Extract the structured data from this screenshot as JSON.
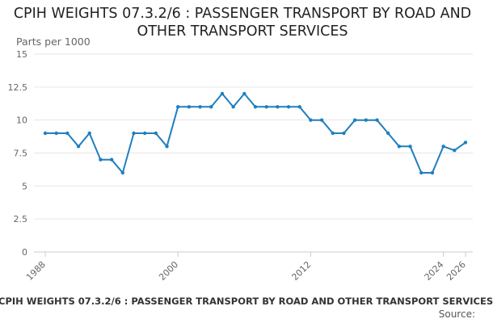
{
  "colors": {
    "line": "#1f7fbf",
    "grid": "#e6e6e6",
    "axis": "#cccccc",
    "tick_text": "#666666"
  },
  "chart_data": {
    "type": "line",
    "title": "CPIH WEIGHTS 07.3.2/6 : PASSENGER TRANSPORT BY ROAD AND OTHER TRANSPORT SERVICES",
    "ylabel": "Parts per 1000",
    "xlabel": "",
    "ylim": [
      0,
      15
    ],
    "yticks": [
      "0",
      "2.5",
      "5",
      "7.5",
      "10",
      "12.5",
      "15"
    ],
    "ytick_values": [
      0,
      2.5,
      5,
      7.5,
      10,
      12.5,
      15
    ],
    "xlim": [
      1988,
      2026
    ],
    "xticks": [
      "1988",
      "2000",
      "2012",
      "2024",
      "2026"
    ],
    "xtick_values": [
      1988,
      2000,
      2012,
      2024,
      2026
    ],
    "grid": true,
    "series": [
      {
        "name": "CPIH weights 07.3.2/6",
        "x": [
          1988,
          1989,
          1990,
          1991,
          1992,
          1993,
          1994,
          1995,
          1996,
          1997,
          1998,
          1999,
          2000,
          2001,
          2002,
          2003,
          2004,
          2005,
          2006,
          2007,
          2008,
          2009,
          2010,
          2011,
          2012,
          2013,
          2014,
          2015,
          2016,
          2017,
          2018,
          2019,
          2020,
          2021,
          2022,
          2023,
          2024,
          2025,
          2026
        ],
        "values": [
          9,
          9,
          9,
          8,
          9,
          7,
          7,
          6,
          9,
          9,
          9,
          8,
          11,
          11,
          11,
          11,
          12,
          11,
          12,
          11,
          11,
          11,
          11,
          11,
          10,
          10,
          9,
          9,
          10,
          10,
          10,
          9,
          8,
          8,
          6,
          6,
          8,
          7.7,
          8.3
        ]
      }
    ]
  },
  "footer": {
    "title": "CPIH WEIGHTS 07.3.2/6 : PASSENGER TRANSPORT BY ROAD AND OTHER TRANSPORT SERVICES",
    "source": "Source:"
  }
}
